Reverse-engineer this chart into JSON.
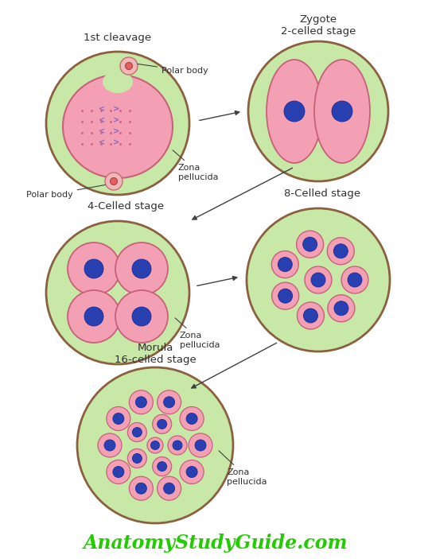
{
  "bg_color": "#ffffff",
  "zona_fill": "#c8e8a8",
  "zona_edge": "#8b6040",
  "cell_fill": "#f4a0b4",
  "cell_edge": "#c8607a",
  "nucleus_fill": "#2840b0",
  "nucleus_edge": "#1828a0",
  "pb_outer_fill": "#f0b8b8",
  "pb_outer_edge": "#c07070",
  "pb_inner_fill": "#e06060",
  "pb_inner_edge": "#b04040",
  "arrow_color": "#404040",
  "text_color": "#303030",
  "chrom_color": "#8868c0",
  "dot_color": "#d06888",
  "watermark_color": "#22cc00",
  "title_1st": "1st cleavage",
  "title_zygote": "Zygote\n2-celled stage",
  "title_4cell": "4-Celled stage",
  "title_8cell": "8-Celled stage",
  "title_morula": "Morula\n16-celled stage",
  "lbl_polar_top": "Polar body",
  "lbl_polar_bot": "Polar body",
  "lbl_zona_1": "Zona\npellucida",
  "lbl_zona_2": "Zona\npellucida",
  "lbl_zona_3": "Zona\npellucida",
  "watermark": "AnatomyStudyGuide.com",
  "figsize": [
    5.43,
    7.03
  ],
  "dpi": 100
}
